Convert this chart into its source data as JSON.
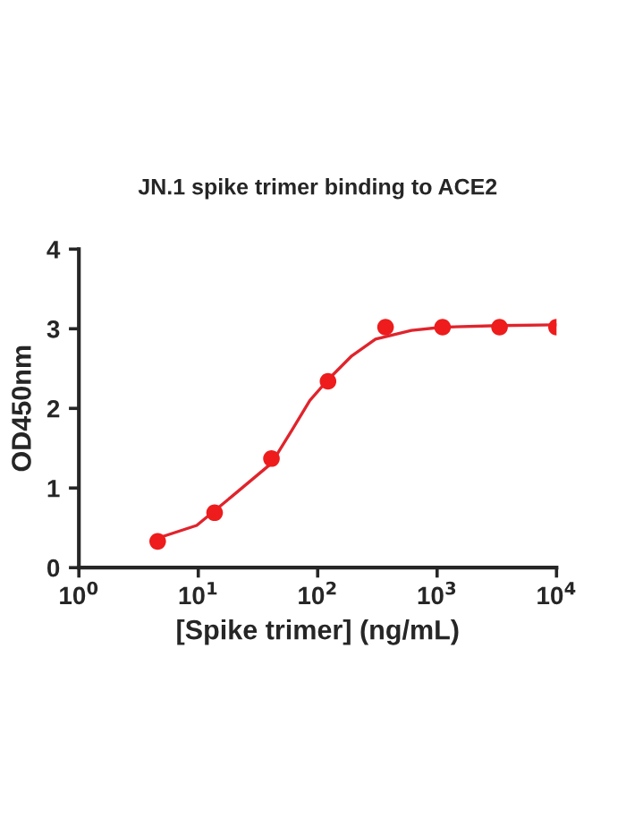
{
  "chart_data": {
    "type": "scatter",
    "title": "JN.1 spike trimer binding to ACE2",
    "xlabel": "[Spike trimer] (ng/mL)",
    "ylabel": "OD450nm",
    "log": "x",
    "xlim": [
      1,
      10000
    ],
    "xticks": [
      {
        "value": 1,
        "label": "10$^{0}$"
      },
      {
        "value": 10,
        "label": "10$^{1}$"
      },
      {
        "value": 100,
        "label": "10$^{2}$"
      },
      {
        "value": 1000,
        "label": "10$^{3}$"
      },
      {
        "value": 10000,
        "label": "10$^{4}$"
      }
    ],
    "ylim": [
      0,
      4
    ],
    "yticks": [
      0,
      1,
      2,
      3,
      4
    ],
    "grid": false,
    "legend": false,
    "series": [
      {
        "marker": "circle",
        "color": "#ee1c1c",
        "x": [
          4.57,
          13.7,
          41,
          122,
          370,
          1111,
          3333,
          10000
        ],
        "values": [
          0.33,
          0.69,
          1.37,
          2.34,
          3.02,
          3.02,
          3.02,
          3.02
        ]
      },
      {
        "type": "line",
        "marker": "none",
        "color": "#e0242c",
        "x": [
          4.57,
          9.7,
          19.3,
          41,
          61,
          86,
          122,
          193,
          305,
          610,
          1111,
          3333,
          10000
        ],
        "values": [
          0.37,
          0.53,
          0.9,
          1.31,
          1.73,
          2.1,
          2.36,
          2.66,
          2.87,
          2.98,
          3.02,
          3.04,
          3.05
        ]
      }
    ]
  }
}
